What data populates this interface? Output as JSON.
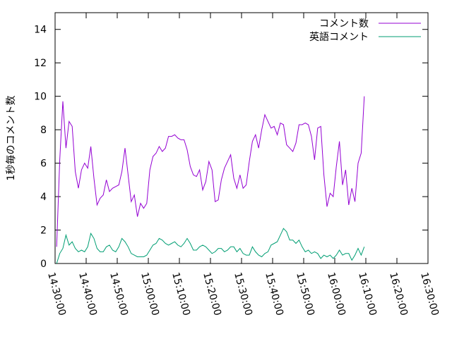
{
  "chart_data": {
    "type": "line",
    "ylabel": "1秒毎のコメント数",
    "xlabel": "",
    "ylim": [
      0,
      15
    ],
    "yticks": [
      0,
      2,
      4,
      6,
      8,
      10,
      12,
      14
    ],
    "xlim": [
      "14:30:00",
      "16:30:00"
    ],
    "xticks": [
      "14:30:00",
      "14:40:00",
      "14:50:00",
      "15:00:00",
      "15:10:00",
      "15:20:00",
      "15:30:00",
      "15:40:00",
      "15:50:00",
      "16:00:00",
      "16:10:00",
      "16:20:00",
      "16:30:00"
    ],
    "grid": false,
    "legend": "top-right",
    "sample_interval_seconds": 60,
    "x_start": "14:30:00",
    "series": [
      {
        "name": "コメント数",
        "color": "#9400d3",
        "values": [
          1.0,
          6.2,
          9.7,
          6.9,
          8.5,
          8.2,
          5.5,
          4.5,
          5.6,
          6.0,
          5.7,
          7.0,
          5.1,
          3.5,
          3.9,
          4.1,
          5.0,
          4.3,
          4.5,
          4.6,
          4.7,
          5.5,
          6.9,
          5.3,
          3.7,
          4.1,
          2.8,
          3.6,
          3.3,
          3.6,
          5.6,
          6.4,
          6.6,
          7.0,
          6.7,
          6.9,
          7.6,
          7.6,
          7.7,
          7.5,
          7.4,
          7.4,
          6.8,
          5.8,
          5.3,
          5.2,
          5.6,
          4.4,
          4.9,
          6.1,
          5.6,
          3.7,
          3.8,
          5.0,
          5.7,
          6.1,
          6.5,
          5.1,
          4.5,
          5.3,
          4.5,
          4.7,
          6.1,
          7.3,
          7.7,
          6.9,
          8.0,
          8.9,
          8.5,
          8.1,
          8.2,
          7.7,
          8.4,
          8.3,
          7.1,
          6.9,
          6.7,
          7.2,
          8.3,
          8.3,
          8.4,
          8.3,
          7.6,
          6.2,
          8.1,
          8.2,
          5.3,
          3.4,
          4.2,
          4.0,
          5.8,
          7.3,
          4.7,
          5.6,
          3.5,
          4.5,
          3.7,
          6.0,
          6.6,
          10.0
        ]
      },
      {
        "name": "英語コメント",
        "color": "#009e73",
        "values": [
          0.0,
          0.6,
          0.9,
          1.7,
          1.1,
          1.3,
          0.9,
          0.7,
          0.8,
          0.7,
          1.0,
          1.8,
          1.5,
          0.9,
          0.7,
          0.7,
          1.0,
          1.1,
          0.8,
          0.7,
          1.0,
          1.5,
          1.3,
          1.0,
          0.6,
          0.5,
          0.4,
          0.4,
          0.4,
          0.5,
          0.8,
          1.1,
          1.2,
          1.5,
          1.4,
          1.2,
          1.1,
          1.2,
          1.3,
          1.1,
          1.0,
          1.2,
          1.5,
          1.2,
          0.8,
          0.8,
          1.0,
          1.1,
          1.0,
          0.8,
          0.6,
          0.7,
          0.9,
          0.9,
          0.7,
          0.8,
          1.0,
          1.0,
          0.7,
          0.9,
          0.6,
          0.5,
          0.5,
          1.0,
          0.7,
          0.5,
          0.4,
          0.6,
          0.7,
          1.1,
          1.2,
          1.3,
          1.7,
          2.1,
          1.9,
          1.4,
          1.4,
          1.2,
          1.4,
          1.0,
          0.7,
          0.8,
          0.6,
          0.7,
          0.6,
          0.3,
          0.5,
          0.4,
          0.5,
          0.3,
          0.5,
          0.8,
          0.5,
          0.6,
          0.6,
          0.2,
          0.5,
          0.9,
          0.5,
          1.0
        ]
      }
    ]
  }
}
